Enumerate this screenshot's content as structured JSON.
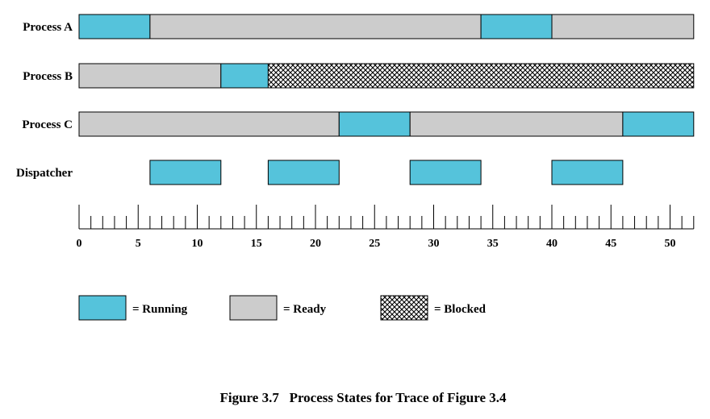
{
  "chart_data": {
    "type": "gantt",
    "time_axis": {
      "min": 0,
      "max": 52,
      "minor_step": 1,
      "major_step": 5,
      "tick_labels": [
        "0",
        "5",
        "10",
        "15",
        "20",
        "25",
        "30",
        "35",
        "40",
        "45",
        "50"
      ]
    },
    "rows": [
      {
        "label": "Process A",
        "segments": [
          {
            "state": "running",
            "start": 0,
            "end": 6
          },
          {
            "state": "ready",
            "start": 6,
            "end": 34
          },
          {
            "state": "running",
            "start": 34,
            "end": 40
          },
          {
            "state": "ready",
            "start": 40,
            "end": 52
          }
        ]
      },
      {
        "label": "Process B",
        "segments": [
          {
            "state": "ready",
            "start": 0,
            "end": 12
          },
          {
            "state": "running",
            "start": 12,
            "end": 16
          },
          {
            "state": "blocked",
            "start": 16,
            "end": 52
          }
        ]
      },
      {
        "label": "Process C",
        "segments": [
          {
            "state": "ready",
            "start": 0,
            "end": 22
          },
          {
            "state": "running",
            "start": 22,
            "end": 28
          },
          {
            "state": "ready",
            "start": 28,
            "end": 46
          },
          {
            "state": "running",
            "start": 46,
            "end": 52
          }
        ]
      },
      {
        "label": "Dispatcher",
        "segments": [
          {
            "state": "running",
            "start": 6,
            "end": 12
          },
          {
            "state": "running",
            "start": 16,
            "end": 22
          },
          {
            "state": "running",
            "start": 28,
            "end": 34
          },
          {
            "state": "running",
            "start": 40,
            "end": 46
          }
        ]
      }
    ],
    "legend": [
      {
        "state": "running",
        "label": "= Running"
      },
      {
        "state": "ready",
        "label": "= Ready"
      },
      {
        "state": "blocked",
        "label": "= Blocked"
      }
    ],
    "colors": {
      "running": "#55c3db",
      "ready": "#cccccc",
      "blocked_pattern": "crosshatch"
    }
  },
  "caption": "Figure 3.7   Process States for Trace of Figure 3.4"
}
